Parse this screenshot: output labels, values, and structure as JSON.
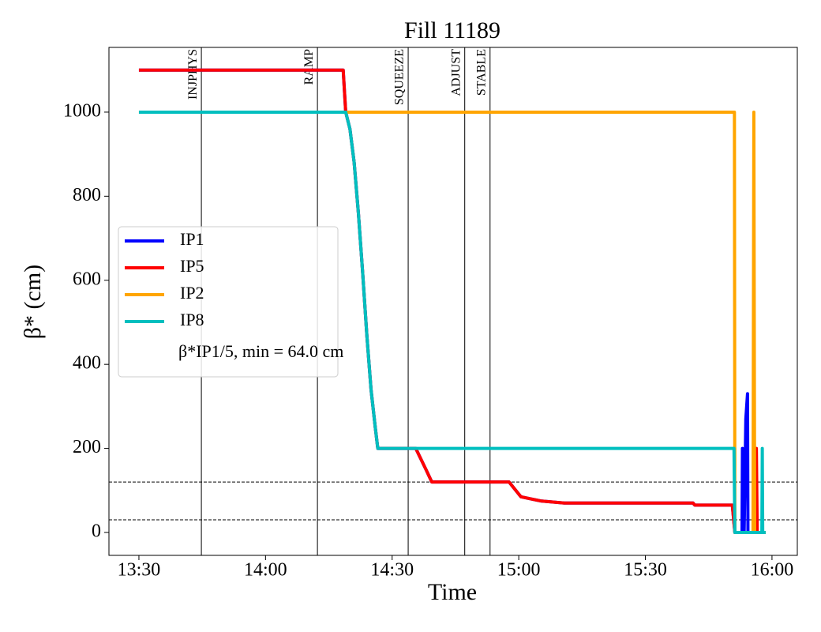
{
  "chart_data": {
    "type": "line",
    "title": "Fill 11189",
    "x_label": "Time",
    "y_label": "β* (cm)",
    "xlim": [
      802.9,
      966.0
    ],
    "ylim": [
      -54.5,
      1154
    ],
    "xticks": [
      {
        "value": 810,
        "label": "13:30"
      },
      {
        "value": 840,
        "label": "14:00"
      },
      {
        "value": 870,
        "label": "14:30"
      },
      {
        "value": 900,
        "label": "15:00"
      },
      {
        "value": 930,
        "label": "15:30"
      },
      {
        "value": 960,
        "label": "16:00"
      }
    ],
    "yticks": [
      0,
      200,
      400,
      600,
      800,
      1000
    ],
    "phases": [
      {
        "name": "INJPHYS",
        "x": 824.8
      },
      {
        "name": "RAMP",
        "x": 852.3
      },
      {
        "name": "SQUEEZE",
        "x": 873.8
      },
      {
        "name": "ADJUST",
        "x": 887.2
      },
      {
        "name": "STABLE",
        "x": 893.2
      }
    ],
    "hlines": [
      120,
      30
    ],
    "legend_note": "β*IP1/5, min = 64.0 cm",
    "series": [
      {
        "name": "IP1",
        "color": "#0000ff",
        "x": [
          810,
          858.4,
          859,
          860,
          861,
          862,
          863,
          864,
          865,
          866,
          866.6,
          875.6,
          878,
          879.4,
          897.7,
          900.5,
          902.8,
          905.2,
          910.8,
          941.3,
          941.7,
          950.6,
          951.2,
          952.9,
          953.0,
          953.4,
          953.8,
          954.2,
          954.3,
          958.5
        ],
        "values": [
          1100,
          1100,
          1000,
          960,
          880,
          760,
          620,
          470,
          340,
          250,
          200,
          200,
          150,
          120,
          120,
          85,
          80,
          75,
          70,
          70,
          65,
          65,
          0,
          0,
          200,
          0,
          270,
          330,
          0,
          0
        ]
      },
      {
        "name": "IP5",
        "color": "#ff0000",
        "x": [
          810,
          858.4,
          859,
          860,
          861,
          862,
          863,
          864,
          865,
          866,
          866.6,
          875.6,
          878,
          879.4,
          897.7,
          900.5,
          902.8,
          905.2,
          910.8,
          941.3,
          941.7,
          950.6,
          951.2,
          956.2,
          956.3,
          956.5,
          958.5
        ],
        "values": [
          1100,
          1100,
          1000,
          960,
          880,
          760,
          620,
          470,
          340,
          250,
          200,
          200,
          150,
          120,
          120,
          85,
          80,
          75,
          70,
          70,
          65,
          65,
          0,
          0,
          200,
          0,
          0
        ]
      },
      {
        "name": "IP2",
        "color": "#ffa500",
        "x": [
          810,
          951.1,
          951.2,
          955.5,
          955.7,
          955.9,
          958.5
        ],
        "values": [
          1000,
          1000,
          0,
          0,
          1000,
          0,
          0
        ]
      },
      {
        "name": "IP8",
        "color": "#00bfbf",
        "x": [
          810,
          859,
          860,
          861,
          862,
          863,
          864,
          865,
          866,
          866.6,
          951.0,
          951.2,
          957.6,
          957.7,
          957.8,
          958.5
        ],
        "values": [
          1000,
          1000,
          960,
          880,
          760,
          620,
          470,
          340,
          250,
          200,
          200,
          0,
          0,
          200,
          0,
          0
        ]
      }
    ]
  }
}
